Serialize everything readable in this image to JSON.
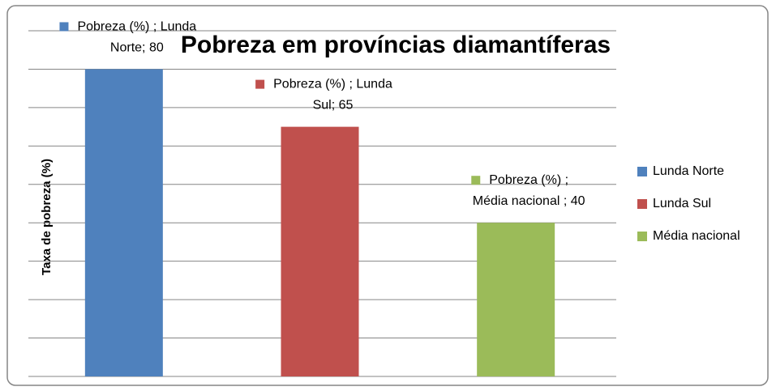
{
  "chart_data": {
    "type": "bar",
    "title": "Pobreza em províncias diamantíferas",
    "y_label": "Taxa de pobreza (%)",
    "series": [
      {
        "name": "Lunda Norte",
        "color": "#4f81bd",
        "values": [
          80
        ],
        "value_labels": [
          "Pobreza (%) ; Lunda\nNorte; 80"
        ]
      },
      {
        "name": "Lunda Sul",
        "color": "#c0504d",
        "values": [
          65
        ],
        "value_labels": [
          "Pobreza (%) ; Lunda\nSul; 65"
        ]
      },
      {
        "name": "Média nacional",
        "color": "#9bbb59",
        "values": [
          40
        ],
        "value_labels": [
          "Pobreza (%) ;\nMédia nacional ; 40"
        ]
      }
    ],
    "ylim": [
      0,
      90
    ],
    "yticks": [
      0,
      10,
      20,
      30,
      40,
      50,
      60,
      70,
      80,
      90
    ],
    "grid": true,
    "legend": "right"
  }
}
